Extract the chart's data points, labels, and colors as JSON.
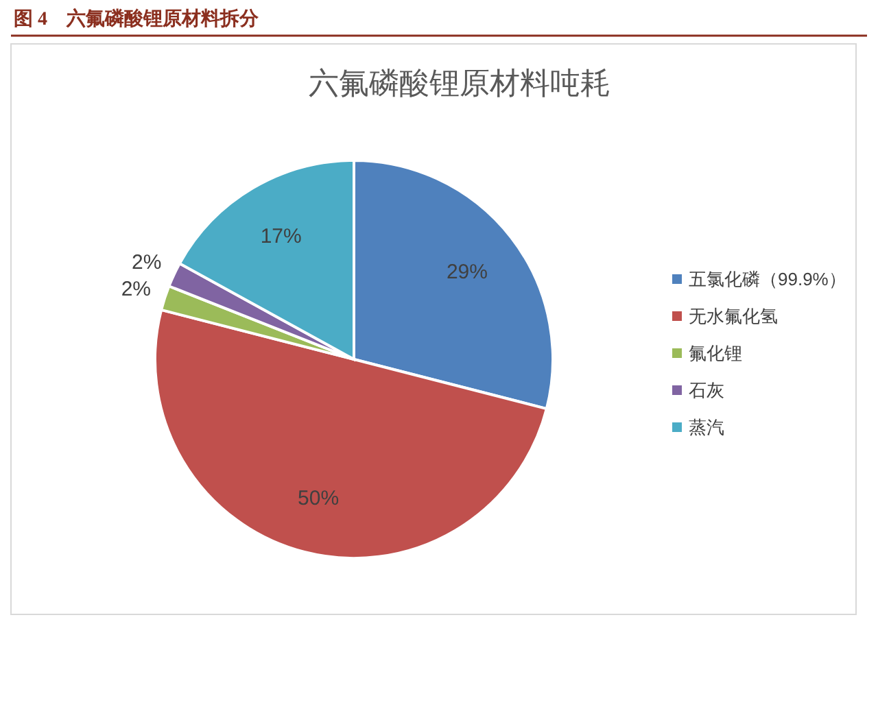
{
  "chart_data": {
    "type": "pie",
    "title": "六氟磷酸锂原材料吨耗",
    "annotations": [
      "图 4　六氟磷酸锂原材料拆分"
    ],
    "categories": [
      "五氯化磷（99.9%）",
      "无水氟化氢",
      "氟化锂",
      "石灰",
      "蒸汽"
    ],
    "values": [
      29,
      50,
      2,
      2,
      17
    ],
    "colors": [
      "#4f81bd",
      "#c0504d",
      "#9bbb59",
      "#8064a2",
      "#4bacc6"
    ],
    "value_labels": [
      "29%",
      "50%",
      "2%",
      "2%",
      "17%"
    ],
    "legend": "right"
  }
}
